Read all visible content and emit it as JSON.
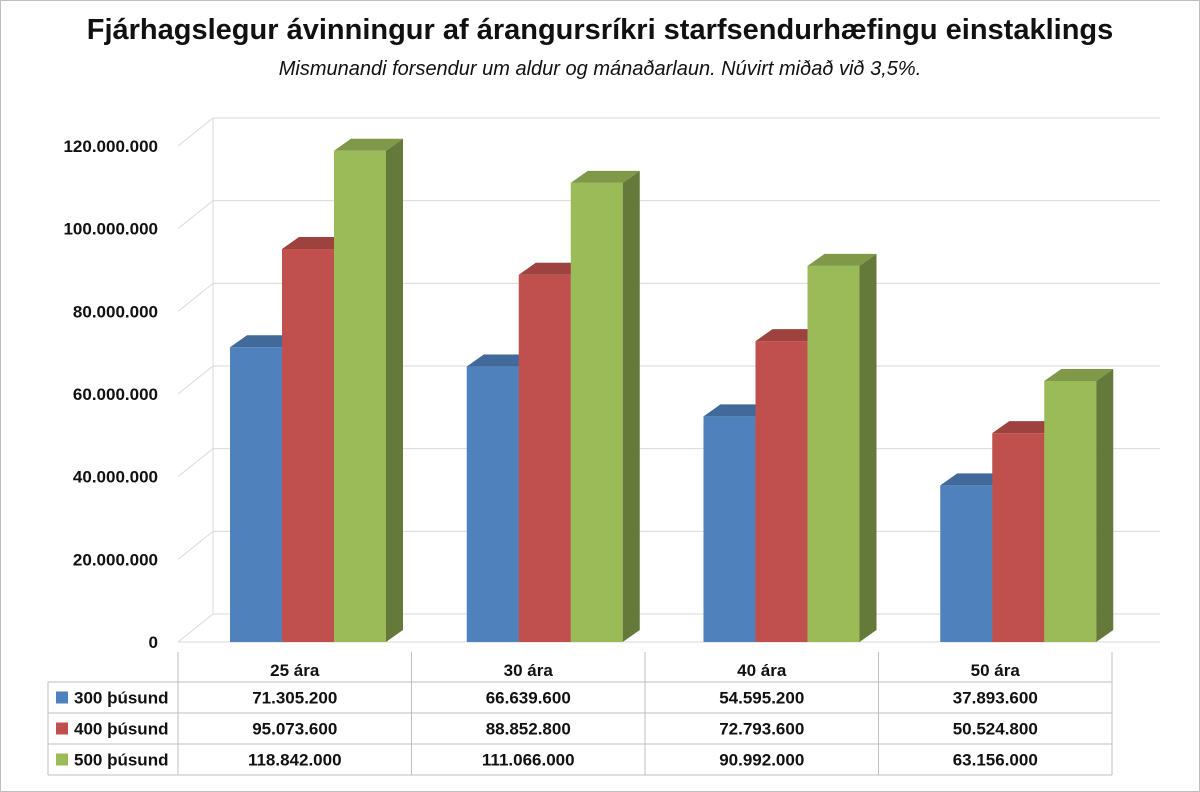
{
  "chart_data": {
    "type": "bar",
    "title": "Fjárhagslegur ávinningur af árangursríkri starfsendurhæfingu einstaklings",
    "subtitle": "Mismunandi forsendur um aldur og mánaðarlaun. Núvirt miðað við 3,5%.",
    "categories": [
      "25 ára",
      "30 ára",
      "40 ára",
      "50 ára"
    ],
    "series": [
      {
        "name": "300 þúsund",
        "color": "#4f81bd",
        "values": [
          71305200,
          66639600,
          54595200,
          37893600
        ],
        "labels": [
          "71.305.200",
          "66.639.600",
          "54.595.200",
          "37.893.600"
        ]
      },
      {
        "name": "400 þúsund",
        "color": "#c0504d",
        "values": [
          95073600,
          88852800,
          72793600,
          50524800
        ],
        "labels": [
          "95.073.600",
          "88.852.800",
          "72.793.600",
          "50.524.800"
        ]
      },
      {
        "name": "500 þúsund",
        "color": "#9bbb59",
        "values": [
          118842000,
          111066000,
          90992000,
          63156000
        ],
        "labels": [
          "118.842.000",
          "111.066.000",
          "90.992.000",
          "63.156.000"
        ]
      }
    ],
    "ylim": [
      0,
      120000000
    ],
    "yticks": [
      "0",
      "20.000.000",
      "40.000.000",
      "60.000.000",
      "80.000.000",
      "100.000.000",
      "120.000.000"
    ],
    "style": "3d-clustered-column",
    "grid": true,
    "legend": "data-table"
  }
}
